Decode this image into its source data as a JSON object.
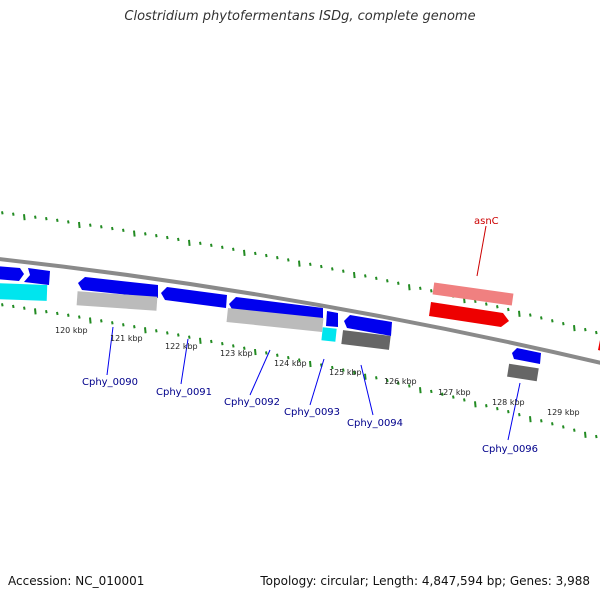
{
  "title": "Clostridium phytofermentans ISDg, complete genome",
  "footer": {
    "accession": "Accession: NC_010001",
    "info": "Topology: circular; Length: 4,847,594 bp; Genes: 3,988"
  },
  "colors": {
    "cds_forward": "#0000ee",
    "cds_reverse_dark": "#666666",
    "cds_light": "#bbbbbb",
    "cyan": "#00e5ee",
    "rna": "#ee0000",
    "rna_light": "#f08080",
    "tick": "#228b22",
    "label_blue": "#00008b",
    "label_red": "#cc0000"
  },
  "kbp_labels": [
    "120 kbp",
    "121 kbp",
    "122 kbp",
    "123 kbp",
    "124 kbp",
    "125 kbp",
    "126 kbp",
    "127 kbp",
    "128 kbp",
    "129 kbp"
  ],
  "gene_labels": [
    "Cphy_0090",
    "Cphy_0091",
    "Cphy_0092",
    "Cphy_0093",
    "Cphy_0094",
    "Cphy_0096"
  ],
  "feature_labels": [
    "asnC"
  ]
}
